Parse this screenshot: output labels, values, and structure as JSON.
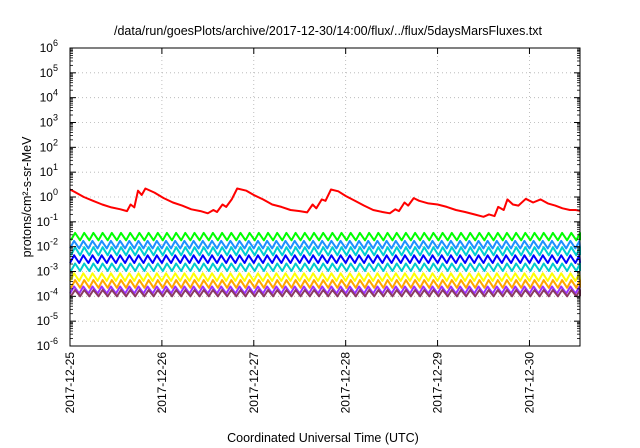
{
  "chart_data": {
    "type": "line",
    "title": "/data/run/goesPlots/archive/2017-12-30/14:00/flux/../flux/5daysMarsFluxes.txt",
    "xlabel": "Coordinated Universal Time (UTC)",
    "ylabel": "protons/cm²-s-sr-MeV",
    "x_unit": "days since 2017-12-25 00:00 UTC",
    "xlim": [
      0,
      5.55
    ],
    "ylim": [
      1e-06,
      1000000.0
    ],
    "yscale": "log",
    "grid": true,
    "legend": "none",
    "x_ticks": [
      {
        "value": 0,
        "label": "2017-12-25"
      },
      {
        "value": 1,
        "label": "2017-12-26"
      },
      {
        "value": 2,
        "label": "2017-12-27"
      },
      {
        "value": 3,
        "label": "2017-12-28"
      },
      {
        "value": 4,
        "label": "2017-12-29"
      },
      {
        "value": 5,
        "label": "2017-12-30"
      }
    ],
    "y_ticks": [
      {
        "exp": -6,
        "label": "10"
      },
      {
        "exp": -5,
        "label": "10"
      },
      {
        "exp": -4,
        "label": "10"
      },
      {
        "exp": -3,
        "label": "10"
      },
      {
        "exp": -2,
        "label": "10"
      },
      {
        "exp": -1,
        "label": "10"
      },
      {
        "exp": 0,
        "label": "10"
      },
      {
        "exp": 1,
        "label": "10"
      },
      {
        "exp": 2,
        "label": "10"
      },
      {
        "exp": 3,
        "label": "10"
      },
      {
        "exp": 4,
        "label": "10"
      },
      {
        "exp": 5,
        "label": "10"
      },
      {
        "exp": 6,
        "label": "10"
      }
    ],
    "series": [
      {
        "color": "#ff0000",
        "x": [
          0.0,
          0.05,
          0.15,
          0.25,
          0.35,
          0.45,
          0.55,
          0.62,
          0.66,
          0.7,
          0.74,
          0.78,
          0.82,
          0.92,
          1.02,
          1.12,
          1.22,
          1.32,
          1.42,
          1.5,
          1.56,
          1.6,
          1.66,
          1.7,
          1.76,
          1.82,
          1.92,
          2.0,
          2.1,
          2.2,
          2.3,
          2.4,
          2.5,
          2.58,
          2.64,
          2.68,
          2.74,
          2.78,
          2.84,
          2.92,
          3.0,
          3.1,
          3.2,
          3.3,
          3.4,
          3.48,
          3.54,
          3.58,
          3.64,
          3.68,
          3.74,
          3.8,
          3.9,
          4.0,
          4.1,
          4.2,
          4.3,
          4.4,
          4.5,
          4.56,
          4.62,
          4.66,
          4.72,
          4.76,
          4.82,
          4.88,
          4.96,
          5.04,
          5.12,
          5.2,
          5.28,
          5.36,
          5.44,
          5.5,
          5.55
        ],
        "y": [
          2.0,
          1.6,
          1.0,
          0.7,
          0.5,
          0.38,
          0.32,
          0.27,
          0.5,
          0.38,
          1.8,
          1.2,
          2.2,
          1.5,
          0.9,
          0.6,
          0.45,
          0.32,
          0.27,
          0.22,
          0.3,
          0.25,
          0.5,
          0.4,
          0.8,
          2.2,
          1.8,
          1.2,
          0.8,
          0.5,
          0.4,
          0.3,
          0.27,
          0.24,
          0.5,
          0.35,
          0.8,
          0.7,
          2.0,
          1.7,
          1.1,
          0.7,
          0.45,
          0.3,
          0.25,
          0.22,
          0.32,
          0.27,
          0.6,
          0.45,
          0.9,
          0.7,
          0.55,
          0.5,
          0.4,
          0.3,
          0.25,
          0.2,
          0.16,
          0.2,
          0.17,
          0.4,
          0.3,
          0.8,
          0.5,
          0.45,
          0.85,
          0.6,
          0.8,
          0.55,
          0.45,
          0.35,
          0.3,
          0.3,
          0.28
        ]
      },
      {
        "color": "#00ff00",
        "baseline": 0.018,
        "spike": 0.036
      },
      {
        "color": "#1e90ff",
        "baseline": 0.0085,
        "spike": 0.017
      },
      {
        "color": "#00ced1",
        "baseline": 0.0045,
        "spike": 0.0095
      },
      {
        "color": "#0000ff",
        "baseline": 0.0022,
        "spike": 0.0045
      },
      {
        "color": "#00cccc",
        "baseline": 0.00105,
        "spike": 0.0021
      },
      {
        "color": "#ffff00",
        "baseline": 0.00042,
        "spike": 0.00085
      },
      {
        "color": "#ffa500",
        "baseline": 0.00022,
        "spike": 0.00045
      },
      {
        "color": "#9b30ff",
        "baseline": 0.00013,
        "spike": 0.00025
      },
      {
        "color": "#8b3a62",
        "baseline": 0.0001,
        "spike": 0.00018
      }
    ],
    "sawtooth_period_days": 0.1
  }
}
